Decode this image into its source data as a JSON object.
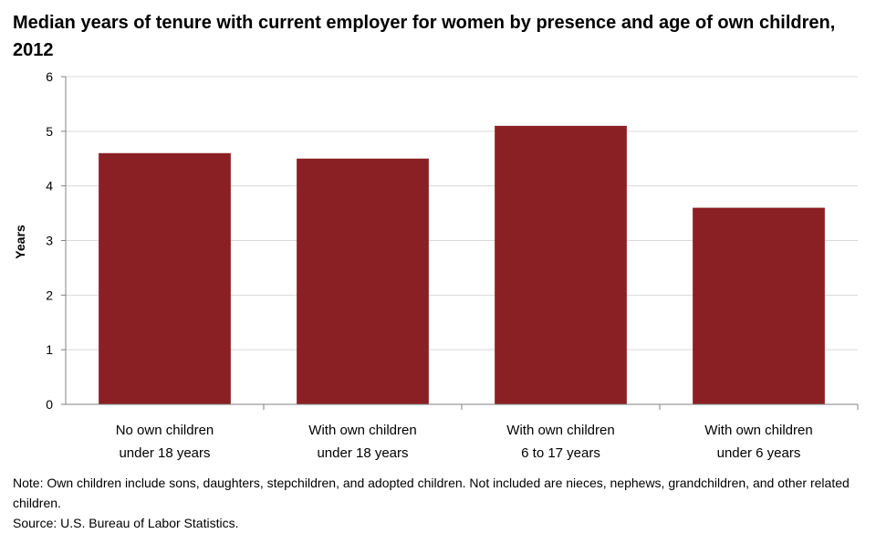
{
  "chart_data": {
    "type": "bar",
    "title": "Median years of tenure with current employer for women by presence and age of own children, 2012",
    "ylabel": "Years",
    "xlabel": "",
    "ylim": [
      0,
      6
    ],
    "yticks": [
      "0",
      "1",
      "2",
      "3",
      "4",
      "5",
      "6"
    ],
    "grid": true,
    "categories": [
      [
        "No own children",
        "under 18 years"
      ],
      [
        "With own children",
        "under 18 years"
      ],
      [
        "With own children",
        "6 to 17 years"
      ],
      [
        "With own children",
        "under 6 years"
      ]
    ],
    "values": [
      4.6,
      4.5,
      5.1,
      3.6
    ],
    "bar_color": "#8B2024"
  },
  "notes": {
    "note": "Note: Own children include sons, daughters, stepchildren, and adopted children. Not included are nieces, nephews, grandchildren, and other related children.",
    "source": "Source: U.S. Bureau of Labor Statistics."
  }
}
